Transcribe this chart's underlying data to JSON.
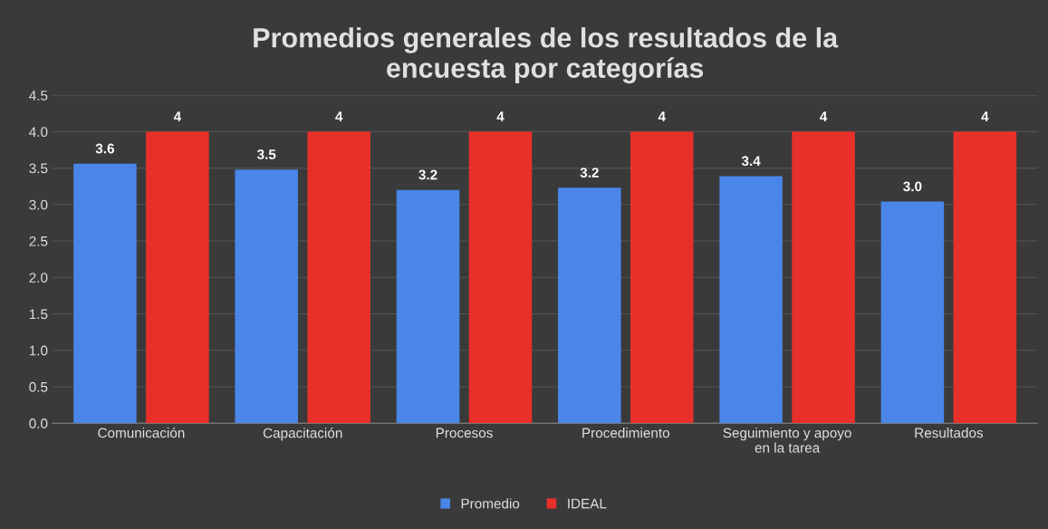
{
  "chart_data": {
    "type": "bar",
    "title": "Promedios generales de los resultados de la\nencuesta por categorías",
    "categories": [
      "Comunicación",
      "Capacitación",
      "Procesos",
      "Procedimiento",
      "Seguimiento y apoyo\nen la tarea",
      "Resultados"
    ],
    "series": [
      {
        "name": "Promedio",
        "color": "#4a86e8",
        "values": [
          3.56,
          3.48,
          3.2,
          3.23,
          3.39,
          3.04
        ],
        "value_labels": [
          "3.6",
          "3.5",
          "3.2",
          "3.2",
          "3.4",
          "3.0"
        ]
      },
      {
        "name": "IDEAL",
        "color": "#e8302a",
        "values": [
          4,
          4,
          4,
          4,
          4,
          4
        ],
        "value_labels": [
          "4",
          "4",
          "4",
          "4",
          "4",
          "4"
        ]
      }
    ],
    "ylim": [
      0,
      4.5
    ],
    "yticks": [
      {
        "value": 0,
        "label": "0.0"
      },
      {
        "value": 0.5,
        "label": "0.5"
      },
      {
        "value": 1,
        "label": "1.0"
      },
      {
        "value": 1.5,
        "label": "1.5"
      },
      {
        "value": 2,
        "label": "2.0"
      },
      {
        "value": 2.5,
        "label": "2.5"
      },
      {
        "value": 3,
        "label": "3.0"
      },
      {
        "value": 3.5,
        "label": "3.5"
      },
      {
        "value": 4,
        "label": "4.0"
      },
      {
        "value": 4.5,
        "label": "4.5"
      }
    ],
    "grid": "y",
    "legend": "bottom"
  }
}
